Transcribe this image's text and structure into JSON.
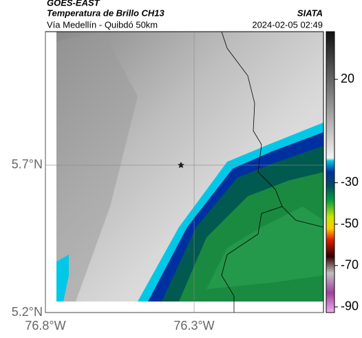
{
  "header": {
    "source": "GOES-EAST",
    "title": "Temperatura de Brillo CH13",
    "agency": "SIATA",
    "route": "Vía Medellín - Quibdó 50km",
    "datetime": "2024-02-05 02:49"
  },
  "map": {
    "xlim": [
      -76.8,
      -75.865
    ],
    "ylim": [
      5.2,
      6.153
    ],
    "xticks": [
      {
        "value": -76.8,
        "label": "76.8°W"
      },
      {
        "value": -76.3,
        "label": "76.3°W"
      }
    ],
    "yticks": [
      {
        "value": 5.2,
        "label": "5.2°N"
      },
      {
        "value": 5.7,
        "label": "5.7°N"
      }
    ]
  },
  "colorbar": {
    "lim": [
      -92.7,
      43
    ],
    "ticks": [
      20,
      -30,
      -50,
      -70,
      -90
    ]
  }
}
